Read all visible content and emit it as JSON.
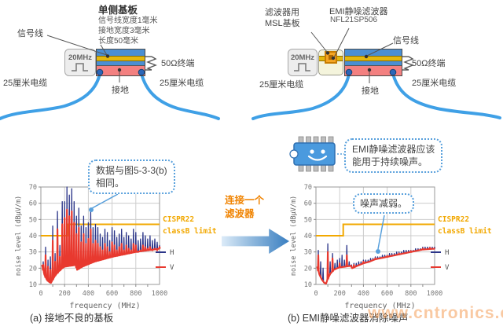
{
  "figure": {
    "caption_a": "(a) 接地不良的基板",
    "caption_b": "(b) EMI静噪滤波器消除噪声",
    "watermark": "www.cntronics.com"
  },
  "diagram_a": {
    "title": "单侧基板",
    "spec_lines": [
      "信号线宽度1毫米",
      "接地宽度3毫米",
      "长度50毫米"
    ],
    "signal_label": "信号线",
    "generator": "20MHz",
    "termination": "50Ω终端",
    "cable_left": "25厘米电缆",
    "cable_right": "25厘米电缆",
    "ground": "接地"
  },
  "diagram_b": {
    "filter_board_lines": [
      "滤波器用",
      "MSL基板"
    ],
    "filter_name": "EMI静噪滤波器",
    "filter_part": "NFL21SP506",
    "signal_label": "信号线",
    "generator": "20MHz",
    "termination": "50Ω终端",
    "cable_left": "25厘米电缆",
    "cable_right": "25厘米电缆",
    "ground": "接地"
  },
  "transition": {
    "lines": [
      "连接一个",
      "滤波器"
    ]
  },
  "callouts": {
    "chart_a_lines": [
      "数据与图5-3-3(b)",
      "相同。"
    ],
    "chart_b": "噪声减弱。",
    "chip_lines": [
      "EMI静噪滤波器应该",
      "能用于持续噪声。"
    ]
  },
  "chart_data": [
    {
      "type": "line",
      "title": "",
      "xlabel": "frequency (MHz)",
      "ylabel": "noise level (dBμV/m)",
      "xlim": [
        0,
        1000
      ],
      "ylim": [
        10,
        70
      ],
      "xticks": [
        0,
        200,
        400,
        600,
        800,
        1000
      ],
      "yticks": [
        10,
        20,
        30,
        40,
        50,
        60,
        70
      ],
      "legend": [
        "H",
        "V"
      ],
      "limit": {
        "label_lines": [
          "CISPR22",
          "classB limit"
        ],
        "color": "#f2a800",
        "points": [
          [
            0,
            40
          ],
          [
            230,
            40
          ],
          [
            230,
            47
          ],
          [
            1000,
            47
          ]
        ]
      },
      "series": [
        {
          "name": "H",
          "color": "#2b3589",
          "baseline": [
            [
              10,
              22
            ],
            [
              30,
              16
            ],
            [
              50,
              13
            ],
            [
              70,
              11.5
            ],
            [
              85,
              11
            ],
            [
              100,
              13
            ],
            [
              120,
              15.5
            ],
            [
              150,
              18
            ],
            [
              180,
              20
            ],
            [
              200,
              21
            ],
            [
              250,
              21.5
            ],
            [
              295,
              22
            ],
            [
              305,
              19
            ],
            [
              350,
              21
            ],
            [
              400,
              22.5
            ],
            [
              450,
              24
            ],
            [
              500,
              25
            ],
            [
              600,
              27
            ],
            [
              700,
              28.5
            ],
            [
              800,
              30
            ],
            [
              900,
              31
            ],
            [
              1000,
              32
            ]
          ],
          "peaks": [
            [
              20,
              24
            ],
            [
              40,
              33
            ],
            [
              60,
              25
            ],
            [
              80,
              27
            ],
            [
              100,
              46
            ],
            [
              120,
              29
            ],
            [
              140,
              55
            ],
            [
              160,
              34
            ],
            [
              180,
              61
            ],
            [
              200,
              61
            ],
            [
              220,
              70
            ],
            [
              240,
              65
            ],
            [
              260,
              69
            ],
            [
              280,
              61
            ],
            [
              300,
              52
            ],
            [
              320,
              57
            ],
            [
              340,
              46
            ],
            [
              360,
              52
            ],
            [
              380,
              45
            ],
            [
              400,
              48
            ],
            [
              420,
              55
            ],
            [
              440,
              45
            ],
            [
              460,
              47
            ],
            [
              480,
              45
            ],
            [
              500,
              41
            ],
            [
              520,
              39
            ],
            [
              540,
              44
            ],
            [
              560,
              42
            ],
            [
              580,
              37
            ],
            [
              600,
              45
            ],
            [
              620,
              43
            ],
            [
              640,
              39
            ],
            [
              660,
              41
            ],
            [
              680,
              44
            ],
            [
              700,
              39
            ],
            [
              720,
              42
            ],
            [
              740,
              40
            ],
            [
              760,
              38
            ],
            [
              780,
              44
            ],
            [
              800,
              42
            ],
            [
              820,
              37
            ],
            [
              840,
              38
            ],
            [
              860,
              42
            ],
            [
              880,
              40
            ],
            [
              900,
              38
            ],
            [
              920,
              40
            ],
            [
              940,
              37
            ],
            [
              960,
              38
            ],
            [
              980,
              36
            ],
            [
              1000,
              34
            ]
          ]
        },
        {
          "name": "V",
          "color": "#e8392f",
          "baseline": [
            [
              10,
              22
            ],
            [
              30,
              16
            ],
            [
              50,
              13
            ],
            [
              70,
              11.5
            ],
            [
              85,
              11
            ],
            [
              100,
              13
            ],
            [
              120,
              15.5
            ],
            [
              150,
              18
            ],
            [
              180,
              20
            ],
            [
              200,
              21
            ],
            [
              250,
              21.5
            ],
            [
              295,
              22
            ],
            [
              305,
              19
            ],
            [
              350,
              21
            ],
            [
              400,
              22.5
            ],
            [
              450,
              24
            ],
            [
              500,
              25
            ],
            [
              600,
              27
            ],
            [
              700,
              28.5
            ],
            [
              800,
              30
            ],
            [
              900,
              31
            ],
            [
              1000,
              32
            ]
          ],
          "peaks": [
            [
              20,
              22
            ],
            [
              40,
              28
            ],
            [
              60,
              21
            ],
            [
              80,
              19
            ],
            [
              100,
              37
            ],
            [
              120,
              24
            ],
            [
              140,
              44
            ],
            [
              160,
              27
            ],
            [
              180,
              47
            ],
            [
              200,
              51
            ],
            [
              220,
              56
            ],
            [
              240,
              52
            ],
            [
              260,
              55
            ],
            [
              280,
              48
            ],
            [
              300,
              41
            ],
            [
              320,
              45
            ],
            [
              340,
              36
            ],
            [
              360,
              41
            ],
            [
              380,
              35
            ],
            [
              400,
              38
            ],
            [
              420,
              44
            ],
            [
              440,
              35
            ],
            [
              460,
              37
            ],
            [
              480,
              35
            ],
            [
              500,
              33
            ],
            [
              520,
              31
            ],
            [
              540,
              35
            ],
            [
              560,
              33
            ],
            [
              580,
              30
            ],
            [
              600,
              36
            ],
            [
              620,
              34
            ],
            [
              640,
              31
            ],
            [
              660,
              33
            ],
            [
              680,
              35
            ],
            [
              700,
              31
            ],
            [
              720,
              34
            ],
            [
              740,
              32
            ],
            [
              760,
              31
            ],
            [
              780,
              35
            ],
            [
              800,
              34
            ],
            [
              820,
              30
            ],
            [
              840,
              31
            ],
            [
              860,
              34
            ],
            [
              880,
              33
            ],
            [
              900,
              32
            ],
            [
              920,
              33
            ],
            [
              940,
              31
            ],
            [
              960,
              32
            ],
            [
              980,
              31
            ],
            [
              1000,
              33
            ]
          ]
        }
      ]
    },
    {
      "type": "line",
      "title": "",
      "xlabel": "frequency (MHz)",
      "ylabel": "noise level (dBμV/m)",
      "xlim": [
        0,
        1000
      ],
      "ylim": [
        10,
        70
      ],
      "xticks": [
        0,
        200,
        400,
        600,
        800,
        1000
      ],
      "yticks": [
        10,
        20,
        30,
        40,
        50,
        60,
        70
      ],
      "legend": [
        "H",
        "V"
      ],
      "limit": {
        "label_lines": [
          "CISPR22",
          "classB limit"
        ],
        "color": "#f2a800",
        "points": [
          [
            0,
            40
          ],
          [
            230,
            40
          ],
          [
            230,
            47
          ],
          [
            1000,
            47
          ]
        ]
      },
      "series": [
        {
          "name": "H",
          "color": "#2b3589",
          "baseline": [
            [
              10,
              21
            ],
            [
              30,
              16
            ],
            [
              50,
              13
            ],
            [
              70,
              11
            ],
            [
              85,
              10.5
            ],
            [
              100,
              13.5
            ],
            [
              120,
              16.5
            ],
            [
              150,
              19
            ],
            [
              180,
              20
            ],
            [
              200,
              20.5
            ],
            [
              250,
              21
            ],
            [
              295,
              21.5
            ],
            [
              305,
              20
            ],
            [
              350,
              21.5
            ],
            [
              400,
              23
            ],
            [
              450,
              24
            ],
            [
              500,
              25.5
            ],
            [
              600,
              27
            ],
            [
              700,
              28.5
            ],
            [
              800,
              30
            ],
            [
              900,
              31.5
            ],
            [
              1000,
              32
            ]
          ],
          "peaks": [
            [
              20,
              31
            ],
            [
              40,
              24
            ],
            [
              60,
              20
            ],
            [
              100,
              35
            ],
            [
              120,
              24
            ],
            [
              140,
              29
            ],
            [
              160,
              23
            ],
            [
              180,
              25
            ],
            [
              200,
              26
            ],
            [
              220,
              28
            ],
            [
              240,
              25
            ],
            [
              260,
              34
            ],
            [
              280,
              24
            ],
            [
              300,
              22
            ],
            [
              320,
              23
            ],
            [
              340,
              23
            ],
            [
              360,
              24
            ],
            [
              380,
              24
            ],
            [
              400,
              25
            ],
            [
              420,
              25
            ],
            [
              440,
              25
            ],
            [
              460,
              26
            ],
            [
              480,
              26
            ],
            [
              500,
              27
            ],
            [
              520,
              27
            ],
            [
              540,
              27
            ],
            [
              560,
              28
            ],
            [
              580,
              28
            ],
            [
              600,
              28
            ],
            [
              620,
              29
            ],
            [
              640,
              29
            ],
            [
              660,
              29
            ],
            [
              680,
              30
            ],
            [
              700,
              30
            ],
            [
              720,
              30
            ],
            [
              740,
              31
            ],
            [
              760,
              31
            ],
            [
              780,
              31
            ],
            [
              800,
              31
            ],
            [
              820,
              31
            ],
            [
              840,
              32
            ],
            [
              860,
              32
            ],
            [
              880,
              32
            ],
            [
              900,
              33
            ],
            [
              920,
              33
            ],
            [
              940,
              33
            ],
            [
              960,
              33
            ],
            [
              980,
              33
            ],
            [
              1000,
              33
            ]
          ]
        },
        {
          "name": "V",
          "color": "#e8392f",
          "baseline": [
            [
              10,
              21
            ],
            [
              30,
              16
            ],
            [
              50,
              13
            ],
            [
              70,
              11
            ],
            [
              85,
              10.5
            ],
            [
              100,
              13.5
            ],
            [
              120,
              16.5
            ],
            [
              150,
              19
            ],
            [
              180,
              20
            ],
            [
              200,
              20.5
            ],
            [
              250,
              21
            ],
            [
              295,
              21.5
            ],
            [
              305,
              20
            ],
            [
              350,
              21.5
            ],
            [
              400,
              23
            ],
            [
              450,
              24
            ],
            [
              500,
              25.5
            ],
            [
              600,
              27
            ],
            [
              700,
              28.5
            ],
            [
              800,
              30
            ],
            [
              900,
              31.5
            ],
            [
              1000,
              32
            ]
          ],
          "peaks": [
            [
              20,
              28
            ],
            [
              100,
              30
            ],
            [
              140,
              26
            ],
            [
              200,
              23
            ],
            [
              260,
              28
            ],
            [
              320,
              22
            ],
            [
              400,
              24
            ],
            [
              500,
              26
            ],
            [
              600,
              27.5
            ],
            [
              700,
              29
            ],
            [
              800,
              30.5
            ],
            [
              860,
              31
            ],
            [
              900,
              32
            ],
            [
              960,
              32.5
            ],
            [
              1000,
              32
            ]
          ]
        }
      ]
    }
  ]
}
